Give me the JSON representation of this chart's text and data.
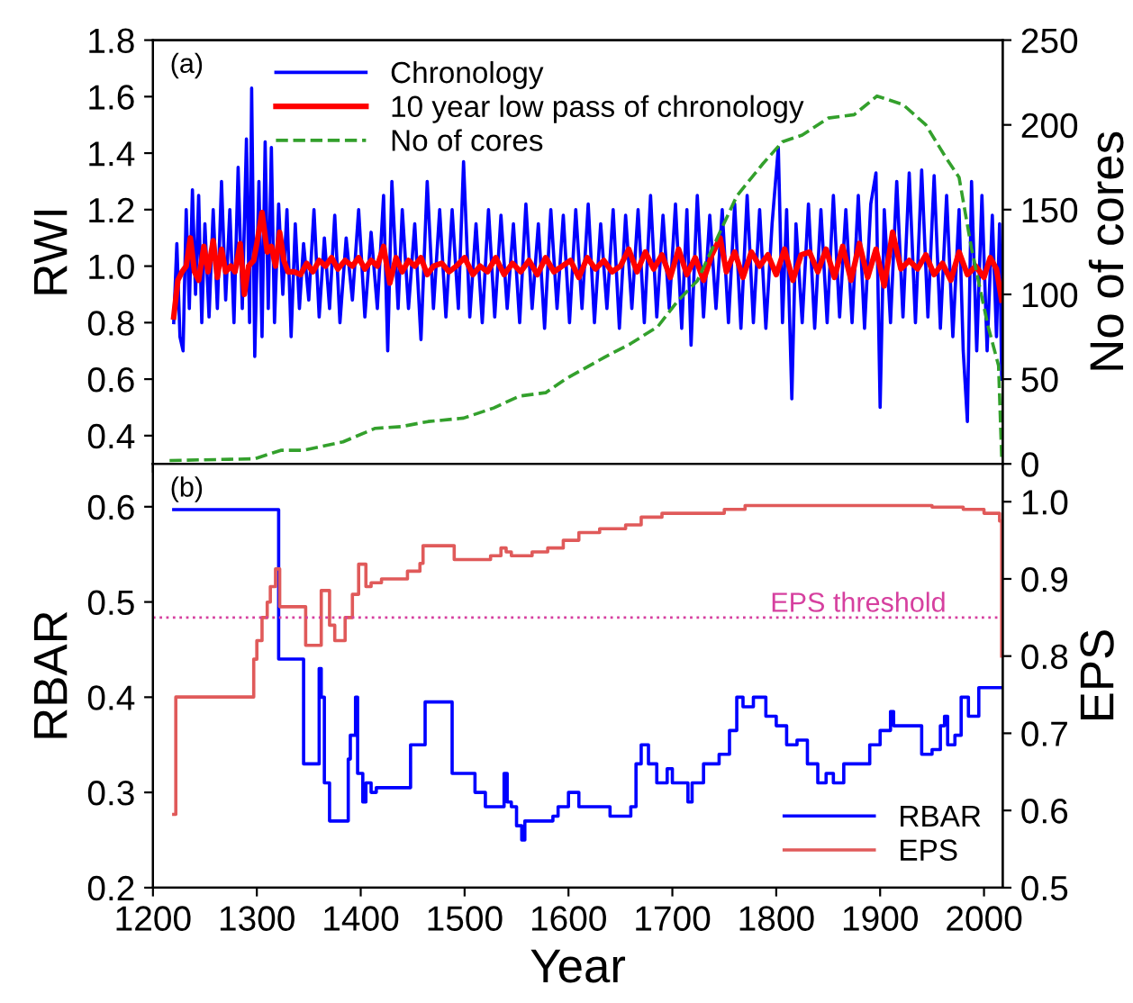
{
  "chart_data": [
    {
      "type": "line",
      "xlim": [
        1200,
        2018
      ],
      "xticks": [
        1200,
        1300,
        1400,
        1500,
        1600,
        1700,
        1800,
        1900,
        2000
      ],
      "ylim": [
        0.3,
        1.8
      ],
      "yticks": [
        0.4,
        0.6,
        0.8,
        {
          "value": 1.0,
          "label": "1.0"
        },
        1.2,
        1.4,
        1.6,
        1.8
      ],
      "y2lim": [
        0,
        250
      ],
      "y2ticks": [
        0,
        50,
        100,
        150,
        200,
        250
      ],
      "ylabel": "RWI",
      "y2label": "No of cores",
      "tick_labels": "y",
      "legend": "top left",
      "annotations": [
        "(a)"
      ],
      "series": [
        {
          "name": "Chronology",
          "color": "#0000ff",
          "x": [
            1220,
            1223,
            1226,
            1229,
            1232,
            1235,
            1238,
            1241,
            1244,
            1247,
            1250,
            1254,
            1258,
            1262,
            1266,
            1270,
            1274,
            1278,
            1282,
            1286,
            1290,
            1293,
            1295,
            1298,
            1302,
            1305,
            1308,
            1311,
            1314,
            1317,
            1321,
            1325,
            1329,
            1333,
            1337,
            1341,
            1345,
            1350,
            1355,
            1360,
            1365,
            1370,
            1375,
            1380,
            1386,
            1392,
            1398,
            1404,
            1410,
            1416,
            1422,
            1426,
            1430,
            1436,
            1440,
            1446,
            1452,
            1458,
            1464,
            1470,
            1476,
            1482,
            1488,
            1494,
            1499,
            1505,
            1511,
            1517,
            1523,
            1529,
            1535,
            1541,
            1547,
            1553,
            1559,
            1565,
            1571,
            1577,
            1583,
            1589,
            1595,
            1601,
            1607,
            1613,
            1619,
            1625,
            1631,
            1637,
            1643,
            1649,
            1655,
            1661,
            1667,
            1673,
            1679,
            1685,
            1691,
            1697,
            1703,
            1709,
            1714,
            1718,
            1724,
            1730,
            1736,
            1742,
            1748,
            1754,
            1760,
            1766,
            1772,
            1778,
            1784,
            1790,
            1796,
            1802,
            1806,
            1810,
            1815,
            1819,
            1825,
            1831,
            1837,
            1843,
            1849,
            1855,
            1861,
            1867,
            1873,
            1879,
            1885,
            1891,
            1896,
            1900,
            1904,
            1910,
            1916,
            1922,
            1928,
            1934,
            1940,
            1946,
            1952,
            1958,
            1964,
            1970,
            1976,
            1980,
            1984,
            1988,
            1993,
            1998,
            2003,
            2008,
            2012,
            2015,
            2017
          ],
          "values": [
            0.8,
            1.08,
            0.75,
            0.7,
            1.2,
            0.85,
            1.27,
            0.9,
            1.25,
            0.8,
            1.15,
            0.82,
            1.2,
            0.85,
            1.3,
            0.88,
            1.2,
            0.8,
            1.35,
            0.85,
            1.45,
            0.8,
            1.63,
            0.68,
            1.3,
            0.75,
            1.44,
            0.85,
            1.42,
            0.8,
            1.22,
            0.9,
            1.2,
            0.75,
            1.15,
            0.85,
            1.08,
            0.88,
            1.2,
            0.82,
            1.1,
            0.85,
            1.18,
            0.8,
            1.1,
            0.88,
            1.2,
            0.82,
            1.12,
            0.85,
            1.25,
            0.7,
            1.3,
            0.85,
            1.2,
            0.85,
            1.15,
            0.74,
            1.3,
            0.85,
            1.2,
            0.82,
            1.2,
            0.85,
            1.37,
            0.82,
            1.15,
            0.8,
            1.2,
            0.82,
            1.18,
            0.85,
            1.15,
            0.8,
            1.22,
            0.85,
            1.15,
            0.78,
            1.2,
            0.85,
            1.18,
            0.8,
            1.2,
            0.85,
            1.22,
            0.8,
            1.15,
            0.85,
            1.2,
            0.78,
            1.18,
            0.85,
            1.2,
            0.8,
            1.25,
            0.82,
            1.18,
            0.85,
            1.22,
            0.78,
            1.2,
            0.72,
            1.25,
            0.82,
            1.18,
            0.85,
            1.2,
            0.8,
            1.22,
            0.78,
            1.25,
            0.8,
            1.2,
            0.78,
            1.15,
            1.42,
            0.8,
            1.2,
            0.53,
            1.15,
            0.8,
            1.22,
            0.78,
            1.2,
            0.8,
            1.25,
            0.82,
            1.2,
            0.8,
            1.25,
            0.78,
            1.22,
            1.33,
            0.5,
            1.2,
            0.8,
            1.3,
            0.82,
            1.33,
            0.8,
            1.34,
            0.82,
            1.32,
            0.78,
            1.25,
            0.75,
            1.2,
            0.7,
            0.45,
            1.3,
            0.7,
            1.25,
            0.7,
            1.18,
            0.75,
            1.15,
            0.6
          ]
        },
        {
          "name": "10 year low pass of chronology",
          "color": "#ff0000",
          "x": [
            1220,
            1224,
            1228,
            1232,
            1236,
            1240,
            1244,
            1249,
            1253,
            1258,
            1262,
            1266,
            1270,
            1275,
            1279,
            1284,
            1288,
            1292,
            1297,
            1300,
            1305,
            1310,
            1314,
            1318,
            1322,
            1326,
            1330,
            1336,
            1342,
            1348,
            1354,
            1360,
            1366,
            1372,
            1378,
            1385,
            1392,
            1398,
            1404,
            1410,
            1416,
            1422,
            1428,
            1434,
            1440,
            1446,
            1452,
            1458,
            1464,
            1470,
            1478,
            1485,
            1492,
            1500,
            1508,
            1515,
            1522,
            1530,
            1538,
            1546,
            1554,
            1562,
            1570,
            1578,
            1586,
            1594,
            1602,
            1610,
            1618,
            1626,
            1634,
            1642,
            1650,
            1658,
            1666,
            1674,
            1682,
            1690,
            1698,
            1706,
            1714,
            1722,
            1730,
            1738,
            1746,
            1752,
            1760,
            1768,
            1776,
            1784,
            1792,
            1800,
            1808,
            1816,
            1824,
            1832,
            1840,
            1848,
            1856,
            1864,
            1872,
            1880,
            1888,
            1896,
            1904,
            1912,
            1920,
            1928,
            1936,
            1944,
            1952,
            1960,
            1968,
            1976,
            1984,
            1992,
            2000,
            2006,
            2012,
            2017
          ],
          "values": [
            0.82,
            0.95,
            0.98,
            1.0,
            1.1,
            0.98,
            0.95,
            1.07,
            0.98,
            1.09,
            0.96,
            1.06,
            0.98,
            1.0,
            0.98,
            1.08,
            0.9,
            1.0,
            1.02,
            1.08,
            1.19,
            1.05,
            1.07,
            1.0,
            1.12,
            1.02,
            0.98,
            0.98,
            0.97,
            1.01,
            0.98,
            1.02,
            1.0,
            1.03,
            0.99,
            1.02,
            1.0,
            1.03,
            0.99,
            1.02,
            1.0,
            1.07,
            0.94,
            1.03,
            0.98,
            1.02,
            1.0,
            1.03,
            0.97,
            1.0,
            1.01,
            0.98,
            1.0,
            1.03,
            0.97,
            1.0,
            0.98,
            1.03,
            0.97,
            1.01,
            0.98,
            1.02,
            0.97,
            1.03,
            0.98,
            1.0,
            1.02,
            0.96,
            1.03,
            0.99,
            1.02,
            0.98,
            1.0,
            1.06,
            0.98,
            1.05,
            0.99,
            1.04,
            0.96,
            1.06,
            0.97,
            1.03,
            0.95,
            1.04,
            1.1,
            0.98,
            1.05,
            0.96,
            1.05,
            1.0,
            1.04,
            0.97,
            1.06,
            0.95,
            1.04,
            1.05,
            0.98,
            1.06,
            0.96,
            1.07,
            0.95,
            1.08,
            0.96,
            1.06,
            0.93,
            1.12,
            0.99,
            1.02,
            0.99,
            1.04,
            0.97,
            1.01,
            0.95,
            1.05,
            0.97,
            1.0,
            0.96,
            1.03,
            0.99,
            0.88
          ]
        },
        {
          "name": "No of cores",
          "color": "#33a02c",
          "axis": "y2",
          "line_style": "dashed",
          "x": [
            1216,
            1298,
            1323,
            1345,
            1383,
            1414,
            1439,
            1465,
            1499,
            1528,
            1553,
            1578,
            1597,
            1635,
            1660,
            1686,
            1705,
            1724,
            1762,
            1787,
            1806,
            1825,
            1850,
            1875,
            1897,
            1922,
            1944,
            1963,
            1976,
            1988,
            2004,
            2014,
            2017
          ],
          "values": [
            2,
            3,
            8,
            8,
            13,
            21,
            22,
            25,
            27,
            33,
            40,
            42,
            50,
            63,
            71,
            81,
            96,
            108,
            158,
            177,
            190,
            194,
            204,
            206,
            217,
            212,
            200,
            181,
            169,
            127,
            81,
            58,
            4
          ]
        }
      ]
    },
    {
      "type": "step",
      "xlim": [
        1200,
        2018
      ],
      "xticks": [
        1200,
        1300,
        1400,
        1500,
        1600,
        1700,
        1800,
        1900,
        2000
      ],
      "ylim": [
        0.2,
        0.645
      ],
      "yticks": [
        0.2,
        0.3,
        0.4,
        0.5,
        0.6
      ],
      "y2lim": [
        0.5,
        1.049
      ],
      "y2ticks": [
        0.5,
        0.6,
        0.7,
        0.8,
        0.9,
        {
          "value": 1.0,
          "label": "1.0"
        }
      ],
      "xlabel": "Year",
      "ylabel": "RBAR",
      "y2label": "EPS",
      "legend": "bottom right",
      "annotations": [
        "(b)"
      ],
      "ref_lines": [
        {
          "axis": "y2",
          "value": 0.85,
          "label": "EPS threshold",
          "color": "#d6409f",
          "line_style": "dotted"
        }
      ],
      "series": [
        {
          "name": "RBAR",
          "color": "#0000ff",
          "x": [
            1220,
            1321,
            1322,
            1345,
            1360,
            1362,
            1365,
            1370,
            1375,
            1388,
            1390,
            1395,
            1397,
            1402,
            1405,
            1410,
            1413,
            1415,
            1448,
            1462,
            1467,
            1488,
            1510,
            1520,
            1525,
            1538,
            1541,
            1545,
            1550,
            1555,
            1558,
            1563,
            1585,
            1590,
            1600,
            1610,
            1615,
            1640,
            1660,
            1665,
            1670,
            1677,
            1685,
            1695,
            1700,
            1715,
            1719,
            1725,
            1730,
            1745,
            1755,
            1762,
            1768,
            1778,
            1790,
            1800,
            1810,
            1820,
            1830,
            1840,
            1848,
            1855,
            1865,
            1880,
            1890,
            1900,
            1910,
            1913,
            1920,
            1940,
            1950,
            1958,
            1962,
            1965,
            1972,
            1978,
            1985,
            1995,
            1997,
            2017
          ],
          "values": [
            0.597,
            0.44,
            0.44,
            0.33,
            0.43,
            0.4,
            0.31,
            0.27,
            0.27,
            0.335,
            0.36,
            0.4,
            0.32,
            0.29,
            0.31,
            0.3,
            0.3,
            0.305,
            0.35,
            0.395,
            0.395,
            0.32,
            0.3,
            0.285,
            0.285,
            0.32,
            0.29,
            0.285,
            0.265,
            0.25,
            0.27,
            0.27,
            0.275,
            0.285,
            0.3,
            0.285,
            0.285,
            0.275,
            0.285,
            0.33,
            0.35,
            0.33,
            0.31,
            0.325,
            0.31,
            0.29,
            0.31,
            0.31,
            0.33,
            0.34,
            0.365,
            0.4,
            0.39,
            0.4,
            0.38,
            0.37,
            0.35,
            0.355,
            0.33,
            0.31,
            0.32,
            0.31,
            0.33,
            0.33,
            0.35,
            0.365,
            0.385,
            0.37,
            0.37,
            0.34,
            0.345,
            0.37,
            0.38,
            0.35,
            0.36,
            0.4,
            0.38,
            0.41,
            0.41,
            0.41
          ]
        },
        {
          "name": "EPS",
          "color": "#e05a5a",
          "axis": "y2",
          "x": [
            1220,
            1222,
            1297,
            1300,
            1305,
            1310,
            1313,
            1318,
            1322,
            1347,
            1362,
            1370,
            1375,
            1385,
            1392,
            1398,
            1405,
            1410,
            1420,
            1445,
            1457,
            1460,
            1490,
            1525,
            1535,
            1540,
            1545,
            1565,
            1580,
            1595,
            1610,
            1630,
            1655,
            1670,
            1690,
            1720,
            1750,
            1770,
            1900,
            1950,
            1980,
            2000,
            2015,
            2017
          ],
          "values": [
            0.595,
            0.747,
            0.796,
            0.82,
            0.85,
            0.87,
            0.89,
            0.913,
            0.864,
            0.814,
            0.885,
            0.84,
            0.82,
            0.85,
            0.88,
            0.919,
            0.89,
            0.895,
            0.9,
            0.91,
            0.92,
            0.943,
            0.925,
            0.93,
            0.94,
            0.935,
            0.93,
            0.935,
            0.94,
            0.95,
            0.96,
            0.965,
            0.97,
            0.98,
            0.985,
            0.985,
            0.99,
            0.995,
            0.995,
            0.993,
            0.99,
            0.985,
            0.975,
            0.8
          ]
        }
      ]
    }
  ]
}
